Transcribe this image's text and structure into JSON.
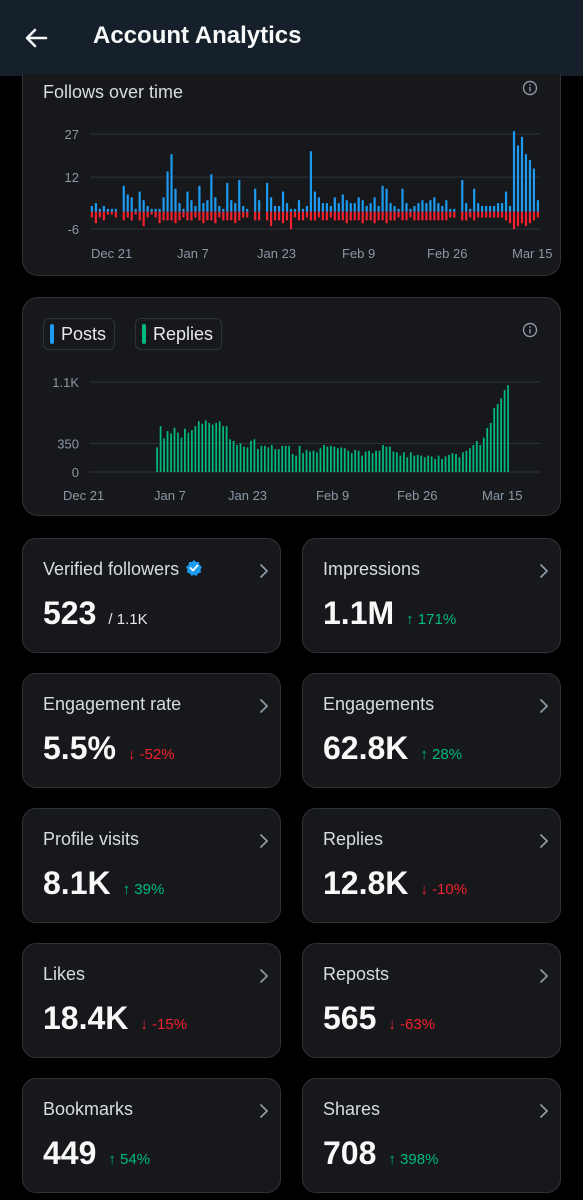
{
  "header": {
    "title": "Account Analytics"
  },
  "follows_chart": {
    "title": "Follows over time",
    "chart_data": {
      "type": "bar",
      "title": "Follows over time",
      "y_ticks": [
        "27",
        "12",
        "-6"
      ],
      "x_ticks": [
        "Dec 21",
        "Jan 7",
        "Jan 23",
        "Feb 9",
        "Feb 26",
        "Mar 15"
      ],
      "series": [
        {
          "name": "follows",
          "color": "#1d9bf0",
          "values": [
            2,
            3,
            1,
            2,
            1,
            1,
            1,
            0,
            9,
            6,
            5,
            1,
            7,
            4,
            2,
            1,
            1,
            1,
            5,
            14,
            20,
            8,
            3,
            1,
            7,
            4,
            2,
            9,
            3,
            4,
            13,
            5,
            2,
            1,
            10,
            4,
            3,
            11,
            2,
            1,
            0,
            8,
            4,
            0,
            10,
            5,
            2,
            2,
            7,
            3,
            1,
            1,
            4,
            1,
            2,
            21,
            7,
            5,
            3,
            3,
            2,
            5,
            3,
            6,
            4,
            3,
            3,
            5,
            4,
            2,
            3,
            5,
            2,
            9,
            8,
            3,
            2,
            1,
            8,
            3,
            1,
            2,
            3,
            4,
            3,
            4,
            5,
            3,
            2,
            4,
            1,
            1,
            0,
            11,
            3,
            1,
            8,
            3,
            2,
            2,
            2,
            2,
            3,
            3,
            7,
            2,
            28,
            23,
            26,
            20,
            18,
            15,
            4
          ]
        },
        {
          "name": "unfollows",
          "color": "#f4212e",
          "values": [
            -2,
            -4,
            -2,
            -3,
            -1,
            -1,
            -2,
            0,
            -3,
            -2,
            -3,
            -1,
            -3,
            -5,
            -2,
            -1,
            -2,
            -4,
            -3,
            -3,
            -3,
            -4,
            -3,
            -2,
            -3,
            -3,
            -2,
            -3,
            -4,
            -3,
            -3,
            -4,
            -2,
            -3,
            -3,
            -3,
            -4,
            -3,
            -2,
            -2,
            0,
            -3,
            -3,
            0,
            -3,
            -5,
            -3,
            -3,
            -4,
            -3,
            -6,
            -2,
            -3,
            -3,
            -2,
            -3,
            -3,
            -2,
            -3,
            -3,
            -2,
            -3,
            -3,
            -3,
            -4,
            -3,
            -3,
            -3,
            -4,
            -3,
            -3,
            -4,
            -3,
            -3,
            -4,
            -3,
            -3,
            -2,
            -3,
            -3,
            -2,
            -3,
            -3,
            -3,
            -3,
            -3,
            -3,
            -3,
            -3,
            -3,
            -2,
            -2,
            0,
            -3,
            -3,
            -2,
            -3,
            -2,
            -2,
            -2,
            -2,
            -2,
            -2,
            -2,
            -3,
            -4,
            -6,
            -5,
            -4,
            -5,
            -4,
            -3,
            -2
          ]
        }
      ],
      "ylim": [
        -6,
        27
      ]
    }
  },
  "posts_chart": {
    "legend": [
      {
        "label": "Posts",
        "color": "#1d9bf0"
      },
      {
        "label": "Replies",
        "color": "#00ba7c"
      }
    ],
    "chart_data": {
      "type": "bar",
      "y_ticks": [
        "1.1K",
        "350",
        "0"
      ],
      "x_ticks": [
        "Dec 21",
        "Jan 7",
        "Jan 23",
        "Feb 9",
        "Feb 26",
        "Mar 15"
      ],
      "series": [
        {
          "name": "Replies",
          "color": "#00ba7c",
          "values": [
            0,
            0,
            0,
            0,
            0,
            0,
            0,
            0,
            0,
            0,
            0,
            0,
            0,
            0,
            0,
            0,
            0,
            0,
            300,
            560,
            410,
            500,
            470,
            540,
            480,
            420,
            530,
            480,
            510,
            560,
            620,
            590,
            630,
            600,
            580,
            600,
            620,
            560,
            560,
            400,
            380,
            330,
            350,
            310,
            300,
            380,
            400,
            280,
            320,
            320,
            300,
            330,
            280,
            280,
            320,
            320,
            320,
            220,
            200,
            320,
            230,
            270,
            250,
            260,
            240,
            290,
            330,
            310,
            320,
            310,
            290,
            300,
            290,
            260,
            230,
            270,
            260,
            200,
            250,
            260,
            230,
            260,
            260,
            330,
            310,
            310,
            250,
            240,
            200,
            240,
            180,
            240,
            200,
            210,
            200,
            180,
            200,
            190,
            160,
            200,
            160,
            190,
            210,
            230,
            220,
            180,
            240,
            260,
            290,
            330,
            380,
            330,
            420,
            540,
            600,
            780,
            830,
            900,
            1000,
            1060
          ]
        }
      ],
      "ylim": [
        0,
        1100
      ]
    }
  },
  "metrics": [
    {
      "label": "Verified followers",
      "value": "523",
      "sub": "/ 1.1K",
      "verified": true
    },
    {
      "label": "Impressions",
      "value": "1.1M",
      "change": "↑ 171%",
      "dir": "up"
    },
    {
      "label": "Engagement rate",
      "value": "5.5%",
      "change": "↓ -52%",
      "dir": "down"
    },
    {
      "label": "Engagements",
      "value": "62.8K",
      "change": "↑ 28%",
      "dir": "up"
    },
    {
      "label": "Profile visits",
      "value": "8.1K",
      "change": "↑ 39%",
      "dir": "up"
    },
    {
      "label": "Replies",
      "value": "12.8K",
      "change": "↓ -10%",
      "dir": "down"
    },
    {
      "label": "Likes",
      "value": "18.4K",
      "change": "↓ -15%",
      "dir": "down"
    },
    {
      "label": "Reposts",
      "value": "565",
      "change": "↓ -63%",
      "dir": "down"
    },
    {
      "label": "Bookmarks",
      "value": "449",
      "change": "↑ 54%",
      "dir": "up"
    },
    {
      "label": "Shares",
      "value": "708",
      "change": "↑ 398%",
      "dir": "up"
    }
  ]
}
